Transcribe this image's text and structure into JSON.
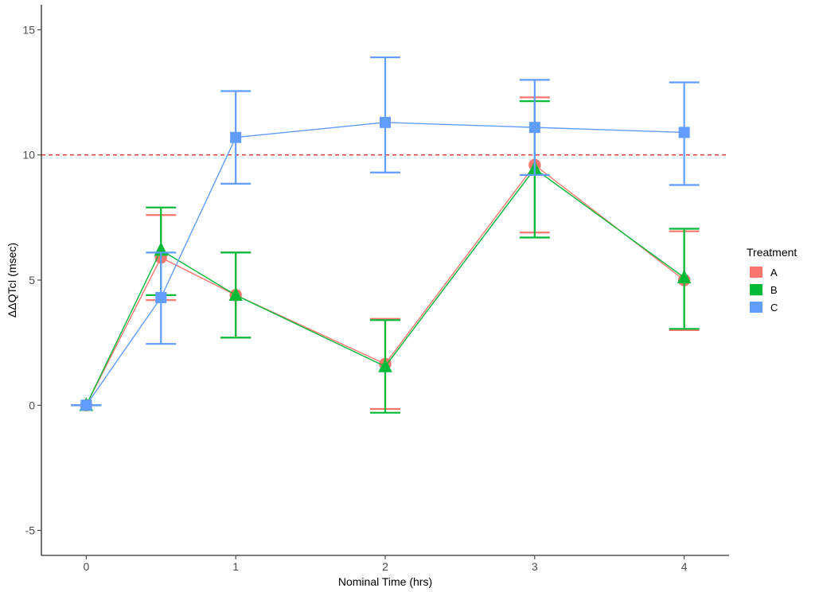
{
  "chart_data": {
    "type": "line",
    "title": "",
    "xlabel": "Nominal Time (hrs)",
    "ylabel": "ΔΔQTcI (msec)",
    "xlim": [
      -0.3,
      4.3
    ],
    "ylim": [
      -6,
      16
    ],
    "xticks": [
      0,
      1,
      2,
      3,
      4
    ],
    "xtick_labels": [
      "0",
      "1",
      "2",
      "3",
      "4"
    ],
    "yticks": [
      -5,
      0,
      5,
      10,
      15
    ],
    "ytick_labels": [
      "-5",
      "0",
      "5",
      "10",
      "15"
    ],
    "reference_line": {
      "y": 10,
      "color": "#e41a1c",
      "style": "dashed"
    },
    "legend": {
      "title": "Treatment",
      "placement": "right"
    },
    "series": [
      {
        "name": "A",
        "color": "#f8766d",
        "marker": "circle",
        "x": [
          0,
          0.5,
          1,
          2,
          3,
          4
        ],
        "y": [
          0,
          5.9,
          4.4,
          1.65,
          9.6,
          5.0
        ],
        "lower": [
          0,
          4.2,
          2.7,
          -0.15,
          6.9,
          3.0
        ],
        "upper": [
          0,
          7.6,
          6.1,
          3.45,
          12.3,
          6.95
        ]
      },
      {
        "name": "B",
        "color": "#00ba38",
        "marker": "triangle",
        "x": [
          0,
          0.5,
          1,
          2,
          3,
          4
        ],
        "y": [
          0,
          6.2,
          4.4,
          1.55,
          9.45,
          5.1
        ],
        "lower": [
          0,
          4.4,
          2.7,
          -0.3,
          6.7,
          3.05
        ],
        "upper": [
          0,
          7.9,
          6.1,
          3.4,
          12.15,
          7.05
        ]
      },
      {
        "name": "C",
        "color": "#619cff",
        "marker": "square",
        "x": [
          0,
          0.5,
          1,
          2,
          3,
          4
        ],
        "y": [
          0,
          4.3,
          10.7,
          11.3,
          11.1,
          10.9
        ],
        "lower": [
          0,
          2.45,
          8.85,
          9.3,
          9.2,
          8.8
        ],
        "upper": [
          0,
          6.1,
          12.55,
          13.9,
          13.0,
          12.9
        ]
      }
    ]
  }
}
